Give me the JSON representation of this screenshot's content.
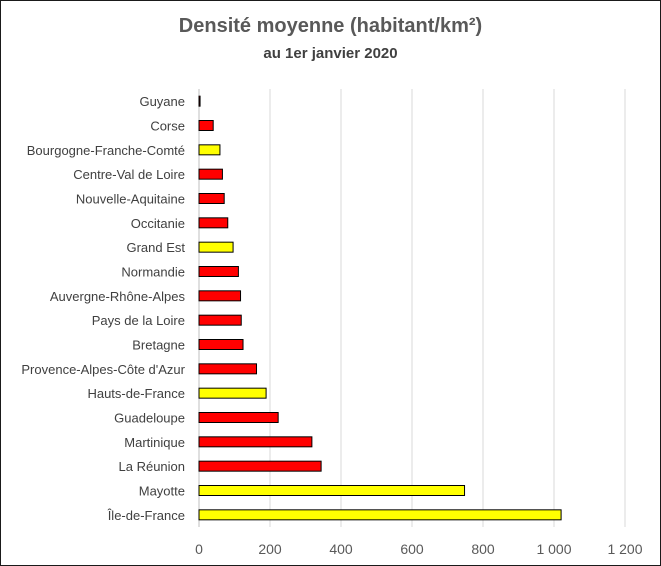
{
  "chart_data": {
    "type": "bar",
    "orientation": "horizontal",
    "title": "Densité moyenne (habitant/km²)",
    "subtitle": "au 1er janvier 2020",
    "categories": [
      "Guyane",
      "Corse",
      "Bourgogne-Franche-Comté",
      "Centre-Val de Loire",
      "Nouvelle-Aquitaine",
      "Occitanie",
      "Grand Est",
      "Normandie",
      "Auvergne-Rhône-Alpes",
      "Pays de la Loire",
      "Bretagne",
      "Provence-Alpes-Côte d'Azur",
      "Hauts-de-France",
      "Guadeloupe",
      "Martinique",
      "La Réunion",
      "Mayotte",
      "Île-de-France"
    ],
    "values": [
      3,
      40,
      59,
      66,
      71,
      81,
      96,
      111,
      117,
      119,
      124,
      162,
      189,
      223,
      318,
      344,
      748,
      1020
    ],
    "bar_colors": [
      "#ff0000",
      "#ff0000",
      "#ffff00",
      "#ff0000",
      "#ff0000",
      "#ff0000",
      "#ffff00",
      "#ff0000",
      "#ff0000",
      "#ff0000",
      "#ff0000",
      "#ff0000",
      "#ffff00",
      "#ff0000",
      "#ff0000",
      "#ff0000",
      "#ffff00",
      "#ffff00"
    ],
    "xlim": [
      0,
      1200
    ],
    "xticks": [
      0,
      200,
      400,
      600,
      800,
      1000,
      1200
    ],
    "xtick_labels": [
      "0",
      "200",
      "400",
      "600",
      "800",
      "1 000",
      "1 200"
    ],
    "grid": "vertical",
    "legend": "none"
  }
}
